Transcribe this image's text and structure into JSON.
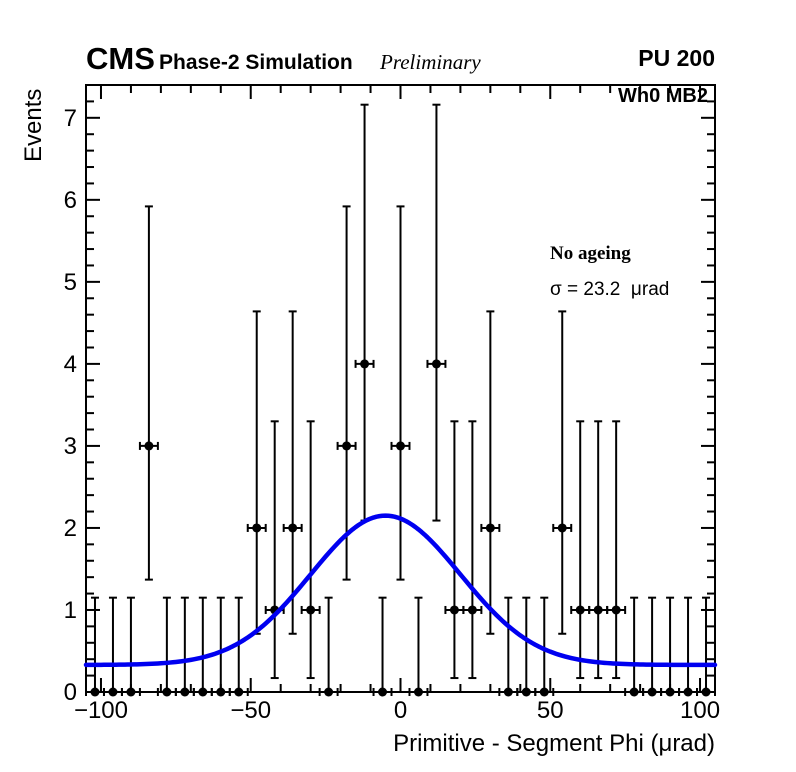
{
  "header": {
    "cms": "CMS",
    "subtitle": "Phase-2 Simulation",
    "preliminary": "Preliminary",
    "pileup": "PU 200"
  },
  "plot_labels": {
    "chamber": "Wh0 MB2",
    "condition": "No ageing",
    "sigma_text": "σ = 23.2  μrad"
  },
  "chart_data": {
    "type": "scatter",
    "title": "",
    "xlabel": "Primitive - Segment Phi (μrad)",
    "ylabel": "Events",
    "xlim": [
      -105,
      105
    ],
    "ylim": [
      0,
      7.4
    ],
    "grid": false,
    "x_major_ticks": [
      -100,
      -50,
      0,
      50,
      100
    ],
    "x_tick_labels": [
      "−100",
      "−50",
      "0",
      "50",
      "100"
    ],
    "x_minor_step": 10,
    "y_major_ticks": [
      0,
      1,
      2,
      3,
      4,
      5,
      6,
      7
    ],
    "y_tick_labels": [
      "0",
      "1",
      "2",
      "3",
      "4",
      "5",
      "6",
      "7"
    ],
    "y_minor_step": 0.2,
    "bin_width": 6,
    "bin_half_width": 3,
    "points": [
      {
        "x": -102,
        "y": 0
      },
      {
        "x": -96,
        "y": 0
      },
      {
        "x": -90,
        "y": 0
      },
      {
        "x": -84,
        "y": 3
      },
      {
        "x": -78,
        "y": 0
      },
      {
        "x": -72,
        "y": 0
      },
      {
        "x": -66,
        "y": 0
      },
      {
        "x": -60,
        "y": 0
      },
      {
        "x": -54,
        "y": 0
      },
      {
        "x": -48,
        "y": 2
      },
      {
        "x": -42,
        "y": 1
      },
      {
        "x": -36,
        "y": 2
      },
      {
        "x": -30,
        "y": 1
      },
      {
        "x": -24,
        "y": 0
      },
      {
        "x": -18,
        "y": 3
      },
      {
        "x": -12,
        "y": 4
      },
      {
        "x": -6,
        "y": 0
      },
      {
        "x": 0,
        "y": 3
      },
      {
        "x": 6,
        "y": 0
      },
      {
        "x": 12,
        "y": 4
      },
      {
        "x": 18,
        "y": 1
      },
      {
        "x": 24,
        "y": 1
      },
      {
        "x": 30,
        "y": 2
      },
      {
        "x": 36,
        "y": 0
      },
      {
        "x": 42,
        "y": 0
      },
      {
        "x": 48,
        "y": 0
      },
      {
        "x": 54,
        "y": 2
      },
      {
        "x": 60,
        "y": 1
      },
      {
        "x": 66,
        "y": 1
      },
      {
        "x": 72,
        "y": 1
      },
      {
        "x": 78,
        "y": 0
      },
      {
        "x": 84,
        "y": 0
      },
      {
        "x": 90,
        "y": 0
      },
      {
        "x": 96,
        "y": 0
      },
      {
        "x": 102,
        "y": 0
      }
    ],
    "poisson_errors": {
      "0": [
        0,
        1.15
      ],
      "1": [
        0.17,
        3.3
      ],
      "2": [
        0.71,
        4.64
      ],
      "3": [
        1.37,
        5.92
      ],
      "4": [
        2.09,
        7.16
      ]
    },
    "fit_curve": {
      "shape": "gaussian_plus_constant",
      "base": 0.33,
      "amplitude": 1.82,
      "mean": -5,
      "sigma": 25,
      "sigma_fit_result_urad": 23.2,
      "color": "#0000f0"
    },
    "marker": {
      "color": "#000000",
      "radius": 4.5
    },
    "legend_position": "right-center"
  }
}
